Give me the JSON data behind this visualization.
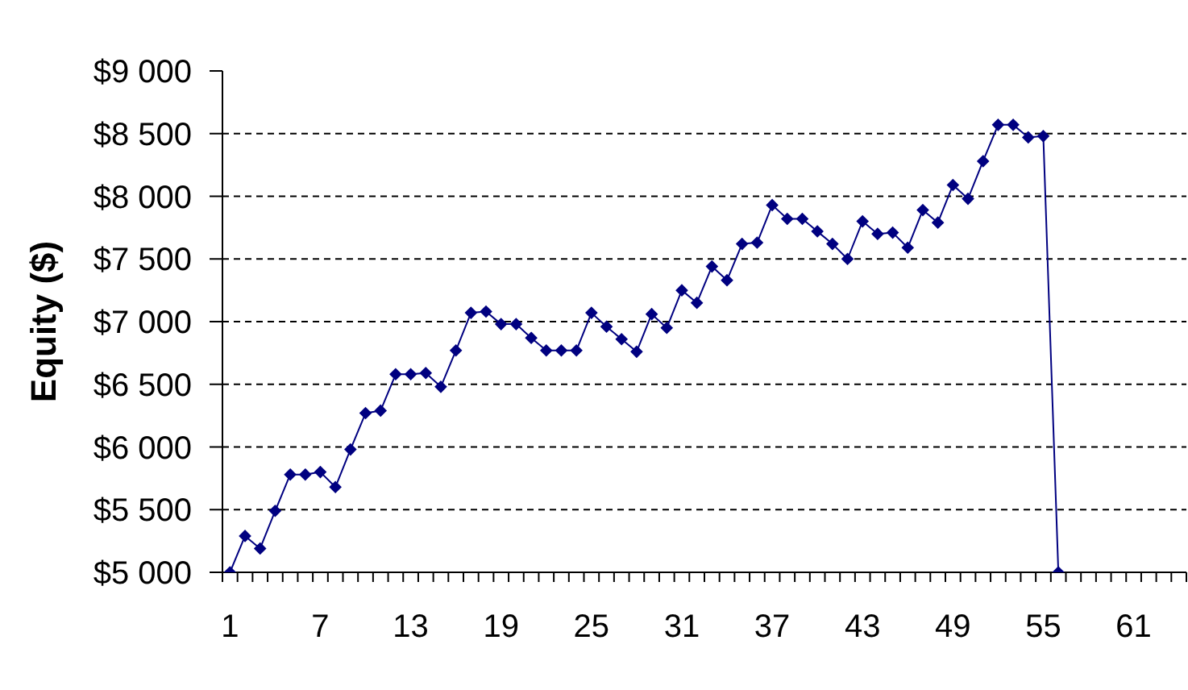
{
  "chart_data": {
    "type": "line",
    "ylabel": "Equity ($)",
    "categories": [
      "1",
      null,
      null,
      null,
      null,
      null,
      "7",
      null,
      null,
      null,
      null,
      null,
      "13",
      null,
      null,
      null,
      null,
      null,
      "19",
      null,
      null,
      null,
      null,
      null,
      "25",
      null,
      null,
      null,
      null,
      null,
      "31",
      null,
      null,
      null,
      null,
      null,
      "37",
      null,
      null,
      null,
      null,
      null,
      "43",
      null,
      null,
      null,
      null,
      null,
      "49",
      null,
      null,
      null,
      null,
      null,
      "55",
      null,
      null,
      null,
      null,
      null,
      "61",
      null,
      null,
      null
    ],
    "series": [
      {
        "color": "#000080",
        "values": [
          5000,
          5290,
          5190,
          5490,
          5780,
          5780,
          5800,
          5680,
          5980,
          6270,
          6290,
          6580,
          6580,
          6590,
          6480,
          6770,
          7070,
          7080,
          6980,
          6980,
          6870,
          6770,
          6770,
          6770,
          7070,
          6960,
          6860,
          6760,
          7060,
          6950,
          7250,
          7150,
          7440,
          7330,
          7620,
          7630,
          7930,
          7820,
          7820,
          7720,
          7620,
          7500,
          7800,
          7700,
          7710,
          7590,
          7890,
          7790,
          8090,
          7980,
          8280,
          8570,
          8570,
          8470,
          8480,
          5000,
          null,
          null,
          null,
          null,
          null,
          null,
          null,
          null
        ]
      }
    ],
    "ylim": [
      5000,
      9000
    ],
    "yticks": [
      {
        "value": 5000,
        "label": "$5 000"
      },
      {
        "value": 5500,
        "label": "$5 500"
      },
      {
        "value": 6000,
        "label": "$6 000"
      },
      {
        "value": 6500,
        "label": "$6 500"
      },
      {
        "value": 7000,
        "label": "$7 000"
      },
      {
        "value": 7500,
        "label": "$7 500"
      },
      {
        "value": 8000,
        "label": "$8 000"
      },
      {
        "value": 8500,
        "label": "$8 500"
      },
      {
        "value": 9000,
        "label": "$9 000"
      }
    ],
    "grid": "y",
    "marker": "diamond",
    "line_style": "solid"
  }
}
